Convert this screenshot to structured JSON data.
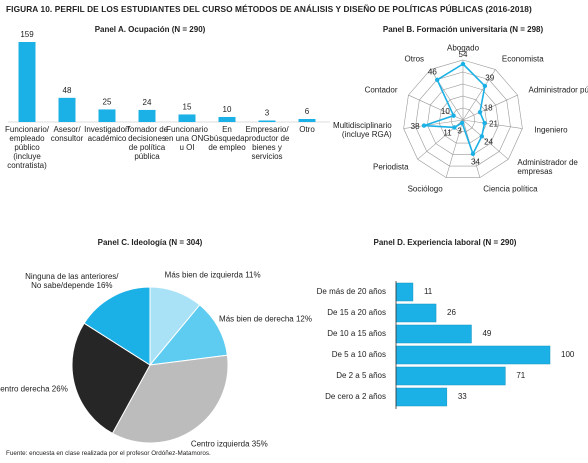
{
  "title": "FIGURA 10. PERFIL DE LOS ESTUDIANTES DEL CURSO MÉTODOS DE ANÁLISIS Y DISEÑO DE POLÍTICAS PÚBLICAS (2016-2018)",
  "chart_data": [
    {
      "type": "bar",
      "title": "Panel A. Ocupación (N = 290)",
      "categories": [
        "Funcionario/ empleado público (incluye contratista)",
        "Asesor/ consultor",
        "Investigador/ académico",
        "Tomador de decisiones de política pública",
        "Funcionario en una ONG u OI",
        "En búsqueda de empleo",
        "Empresario/ productor de bienes y servicios",
        "Otro"
      ],
      "values": [
        159,
        48,
        25,
        24,
        15,
        10,
        3,
        6
      ],
      "color": "#1cb1e6"
    },
    {
      "type": "radar",
      "title": "Panel B. Formación universitaria (N = 298)",
      "categories": [
        "Abogado",
        "Economista",
        "Administrador público",
        "Ingeniero",
        "Administrador de empresas",
        "Ciencia política",
        "Sociólogo",
        "Periodista",
        "Multidisciplinario (incluye RGA)",
        "Contador",
        "Otros"
      ],
      "values": [
        54,
        39,
        18,
        21,
        24,
        34,
        3,
        11,
        38,
        10,
        46
      ],
      "color": "#1cb1e6"
    },
    {
      "type": "pie",
      "title": "Panel C. Ideología (N = 304)",
      "categories": [
        "Más bien de izquierda",
        "Más bien de derecha",
        "Centro izquierda",
        "Centro derecha",
        "Ninguna de las anteriores/ No sabe/depende"
      ],
      "values": [
        11,
        12,
        35,
        26,
        16
      ],
      "value_labels": [
        "11%",
        "12%",
        "35%",
        "26%",
        "16%"
      ],
      "colors": [
        "#a9e2f7",
        "#5ecbf1",
        "#bcbcbc",
        "#262626",
        "#1cb1e6"
      ]
    },
    {
      "type": "hbar",
      "title": "Panel D. Experiencia laboral (N = 290)",
      "categories": [
        "De más de 20 años",
        "De 15 a 20 años",
        "De 10 a 15 años",
        "De 5 a 10 años",
        "De 2 a 5 años",
        "De cero a 2 años"
      ],
      "values": [
        11,
        26,
        49,
        100,
        71,
        33
      ],
      "color": "#1cb1e6"
    }
  ],
  "source": "Fuente: encuesta en clase realizada por el profesor Ordóñez-Matamoros."
}
